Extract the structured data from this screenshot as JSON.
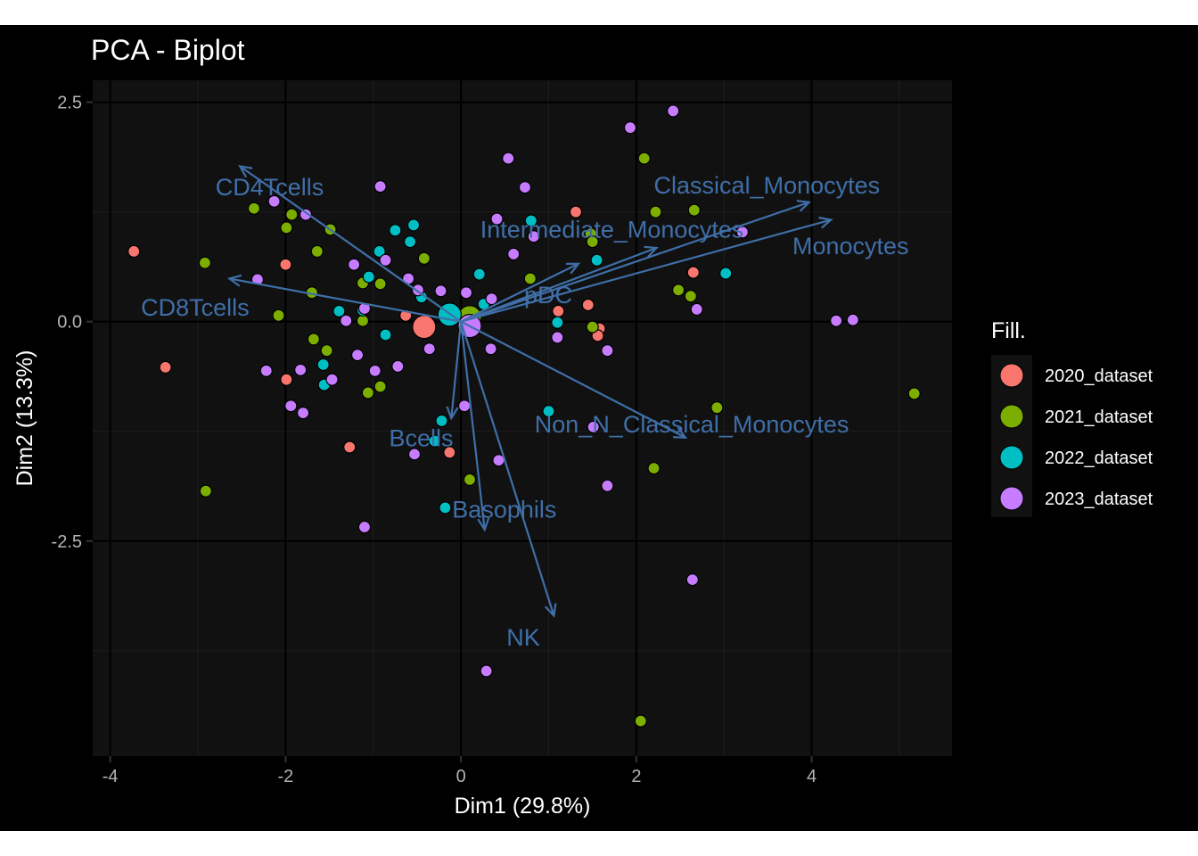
{
  "chart_data": {
    "type": "scatter",
    "title": "PCA - Biplot",
    "xlabel": "Dim1 (29.8%)",
    "ylabel": "Dim2 (13.3%)",
    "xlim": [
      -4.2,
      5.6
    ],
    "ylim": [
      -4.95,
      2.75
    ],
    "xticks": [
      -4,
      -2,
      0,
      2,
      4
    ],
    "yticks": [
      2.5,
      0.0,
      -2.5
    ],
    "xtick_labels": [
      "-4",
      "-2",
      "0",
      "2",
      "4"
    ],
    "ytick_labels": [
      "2.5",
      "0.0",
      "-2.5"
    ],
    "grid": true,
    "legend": {
      "title": "Fill.",
      "position": "right"
    },
    "colors": {
      "background": "#000000",
      "panel": "#111111",
      "grid_major": "#000000",
      "grid_minor": "#1f1f1f",
      "arrow": "#3f6fa8",
      "text": "#ffffff",
      "tick_text": "#b3b3b3"
    },
    "series": [
      {
        "name": "2020_dataset",
        "color": "#F8766D",
        "centroid": [
          -0.42,
          -0.06
        ],
        "points": [
          [
            -3.73,
            0.8
          ],
          [
            -3.37,
            -0.52
          ],
          [
            -2.0,
            0.65
          ],
          [
            -1.99,
            -0.66
          ],
          [
            -1.27,
            -1.43
          ],
          [
            -0.63,
            0.07
          ],
          [
            -0.13,
            -1.49
          ],
          [
            1.31,
            1.25
          ],
          [
            1.11,
            0.12
          ],
          [
            1.45,
            0.19
          ],
          [
            1.58,
            -0.08
          ],
          [
            1.56,
            -0.16
          ],
          [
            2.65,
            0.56
          ]
        ]
      },
      {
        "name": "2021_dataset",
        "color": "#7CAE00",
        "centroid": [
          0.1,
          0.05
        ],
        "points": [
          [
            -2.92,
            0.67
          ],
          [
            -2.36,
            1.29
          ],
          [
            -2.08,
            0.07
          ],
          [
            -1.99,
            1.07
          ],
          [
            -1.93,
            1.22
          ],
          [
            -1.64,
            0.8
          ],
          [
            -1.7,
            0.33
          ],
          [
            -1.68,
            -0.2
          ],
          [
            -1.53,
            -0.33
          ],
          [
            -1.49,
            1.05
          ],
          [
            -1.12,
            0.44
          ],
          [
            -1.12,
            0.01
          ],
          [
            -1.06,
            -0.81
          ],
          [
            -0.92,
            0.43
          ],
          [
            -0.92,
            -0.74
          ],
          [
            -0.42,
            0.72
          ],
          [
            -2.91,
            -1.93
          ],
          [
            0.1,
            -1.8
          ],
          [
            0.79,
            0.49
          ],
          [
            1.48,
            1.0
          ],
          [
            1.5,
            0.91
          ],
          [
            1.5,
            -0.06
          ],
          [
            2.09,
            1.86
          ],
          [
            2.22,
            1.25
          ],
          [
            2.48,
            0.36
          ],
          [
            2.62,
            0.29
          ],
          [
            2.66,
            1.27
          ],
          [
            2.92,
            -0.98
          ],
          [
            2.2,
            -1.67
          ],
          [
            5.17,
            -0.82
          ],
          [
            2.05,
            -4.55
          ]
        ]
      },
      {
        "name": "2022_dataset",
        "color": "#00BFC4",
        "centroid": [
          -0.13,
          0.08
        ],
        "points": [
          [
            -1.39,
            0.12
          ],
          [
            -1.12,
            0.13
          ],
          [
            -1.05,
            0.51
          ],
          [
            -0.93,
            0.8
          ],
          [
            -0.86,
            -0.15
          ],
          [
            -0.75,
            1.04
          ],
          [
            -0.58,
            0.91
          ],
          [
            -0.54,
            1.1
          ],
          [
            -0.45,
            0.28
          ],
          [
            -0.3,
            -1.36
          ],
          [
            -0.22,
            -1.13
          ],
          [
            -0.18,
            -2.12
          ],
          [
            0.21,
            0.54
          ],
          [
            0.26,
            0.2
          ],
          [
            0.8,
            1.15
          ],
          [
            1.1,
            -0.01
          ],
          [
            1.0,
            -1.02
          ],
          [
            1.55,
            0.7
          ],
          [
            3.02,
            0.55
          ],
          [
            -1.57,
            -0.49
          ],
          [
            -1.56,
            -0.72
          ]
        ]
      },
      {
        "name": "2023_dataset",
        "color": "#C77CFF",
        "centroid": [
          0.1,
          -0.05
        ],
        "points": [
          [
            -2.32,
            0.48
          ],
          [
            -2.22,
            -0.56
          ],
          [
            -2.13,
            1.37
          ],
          [
            -1.94,
            -0.96
          ],
          [
            -1.83,
            -0.55
          ],
          [
            -1.8,
            -1.04
          ],
          [
            -1.77,
            1.22
          ],
          [
            -1.47,
            -0.66
          ],
          [
            -1.31,
            0.01
          ],
          [
            -1.22,
            0.65
          ],
          [
            -1.18,
            -0.38
          ],
          [
            -1.1,
            0.15
          ],
          [
            -1.1,
            -2.34
          ],
          [
            -0.98,
            -0.56
          ],
          [
            -0.92,
            1.54
          ],
          [
            -0.86,
            0.7
          ],
          [
            -0.72,
            -0.51
          ],
          [
            -0.6,
            0.49
          ],
          [
            -0.53,
            -1.51
          ],
          [
            -0.49,
            0.36
          ],
          [
            -0.36,
            -0.31
          ],
          [
            -0.23,
            0.35
          ],
          [
            0.04,
            -0.96
          ],
          [
            0.06,
            0.33
          ],
          [
            0.35,
            0.26
          ],
          [
            0.34,
            -0.31
          ],
          [
            0.54,
            1.86
          ],
          [
            0.73,
            1.53
          ],
          [
            0.6,
            0.77
          ],
          [
            0.83,
            0.97
          ],
          [
            0.43,
            -1.58
          ],
          [
            0.29,
            -3.98
          ],
          [
            1.1,
            -0.18
          ],
          [
            1.51,
            -1.2
          ],
          [
            1.67,
            -0.33
          ],
          [
            1.67,
            -1.87
          ],
          [
            1.93,
            2.21
          ],
          [
            2.42,
            2.4
          ],
          [
            2.69,
            0.14
          ],
          [
            3.21,
            1.02
          ],
          [
            4.28,
            0.01
          ],
          [
            4.47,
            0.02
          ],
          [
            2.64,
            -2.94
          ],
          [
            0.41,
            1.17
          ]
        ]
      }
    ],
    "variables": [
      {
        "name": "CD4Tcells",
        "x": -2.52,
        "y": 1.77
      },
      {
        "name": "CD8Tcells",
        "x": -2.64,
        "y": 0.49
      },
      {
        "name": "Classical_Monocytes",
        "x": 3.97,
        "y": 1.36
      },
      {
        "name": "Monocytes",
        "x": 4.22,
        "y": 1.16
      },
      {
        "name": "Intermediate_Monocytes",
        "x": 2.23,
        "y": 0.84
      },
      {
        "name": "pDC",
        "x": 1.34,
        "y": 0.66
      },
      {
        "name": "Non_N_Classical_Monocytes",
        "x": 2.56,
        "y": -1.32
      },
      {
        "name": "Bcells",
        "x": -0.11,
        "y": -1.1
      },
      {
        "name": "Basophils",
        "x": 0.27,
        "y": -2.37
      },
      {
        "name": "NK",
        "x": 1.06,
        "y": -3.35
      }
    ]
  }
}
